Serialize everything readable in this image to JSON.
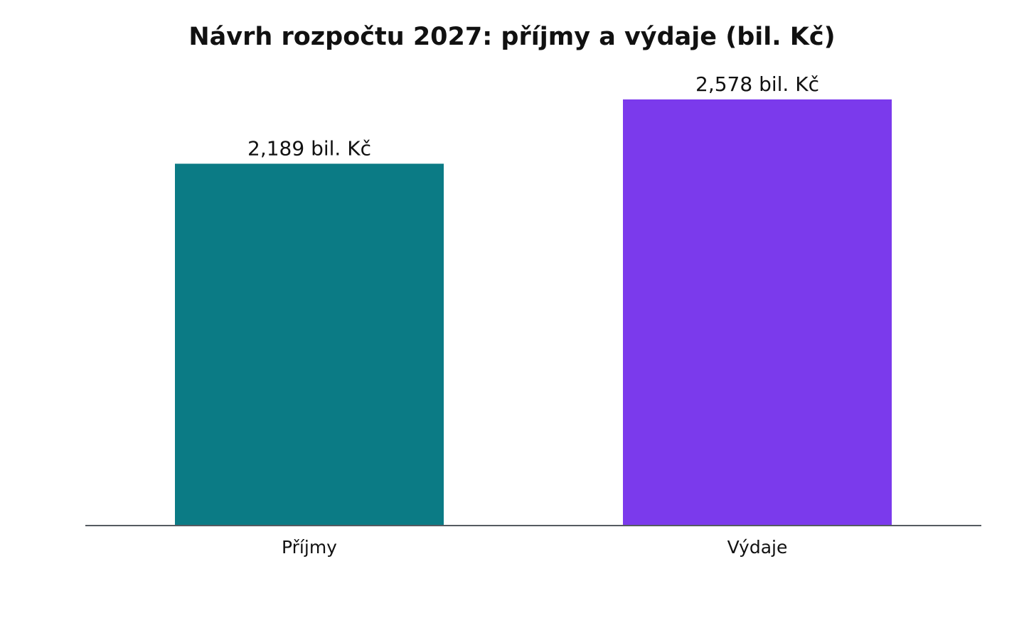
{
  "chart_data": {
    "type": "bar",
    "title": "Návrh rozpočtu 2027: příjmy a výdaje (bil. Kč)",
    "xlabel": "",
    "ylabel": "",
    "unit": "bil. Kč",
    "categories": [
      "Příjmy",
      "Výdaje"
    ],
    "values": [
      2.189,
      2.578
    ],
    "data_labels": [
      "2,189 bil. Kč",
      "2,578 bil. Kč"
    ],
    "colors": [
      "#0b7b85",
      "#7b3aec"
    ],
    "ylim": [
      0,
      2.578
    ],
    "grid": false,
    "legend": "none",
    "y_axis_visible": false
  }
}
